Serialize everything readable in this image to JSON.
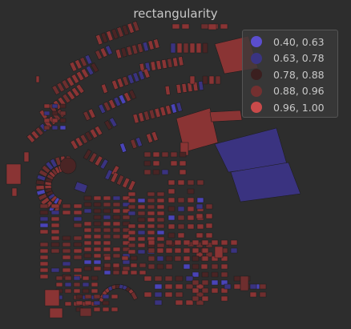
{
  "title": "rectangularity",
  "legend": {
    "items": [
      {
        "label": "0.40, 0.63",
        "color": "#5b4ecf"
      },
      {
        "label": "0.63, 0.78",
        "color": "#3a3482"
      },
      {
        "label": "0.78, 0.88",
        "color": "#3b1f1f"
      },
      {
        "label": "0.88, 0.96",
        "color": "#733030"
      },
      {
        "label": "0.96, 1.00",
        "color": "#c94a4a"
      }
    ]
  },
  "fill_colors": {
    "high": "#8a3434",
    "mid": "#6e2e2e",
    "dark": "#4a2424",
    "low": "#3a3380",
    "lowest": "#4a44b8",
    "outline": "#1e1e1e"
  }
}
